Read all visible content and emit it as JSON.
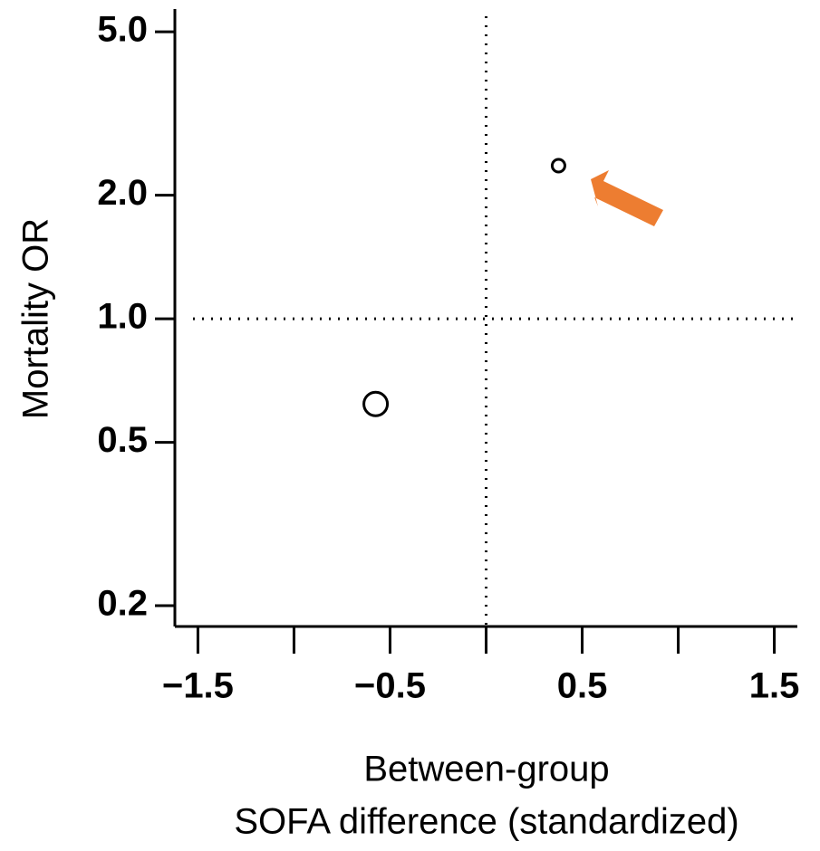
{
  "chart_data": {
    "type": "scatter",
    "x_label": [
      "Between-group",
      "SOFA difference (standardized)"
    ],
    "y_label": "Mortality OR",
    "series": [
      {
        "x": [
          -0.575,
          0.377
        ],
        "values": [
          0.62,
          2.36
        ],
        "sizes": [
          13,
          7
        ],
        "color": "#000000"
      }
    ],
    "xlim": [
      -1.62,
      1.62
    ],
    "xticks": [
      {
        "value": -1.5,
        "label": "−1.5"
      },
      {
        "value": -0.5,
        "label": "−0.5"
      },
      0.5,
      1.5
    ],
    "xminorticks": [
      -1,
      0,
      1
    ],
    "ylim": [
      0.178,
      5.68
    ],
    "yscale": "log",
    "yticks": [
      {
        "value": 5,
        "label": "5.0"
      },
      {
        "value": 2,
        "label": "2.0"
      },
      {
        "value": 1,
        "label": "1.0"
      },
      0.5,
      0.2
    ],
    "reference_lines": {
      "x": 0,
      "y": 1
    }
  }
}
